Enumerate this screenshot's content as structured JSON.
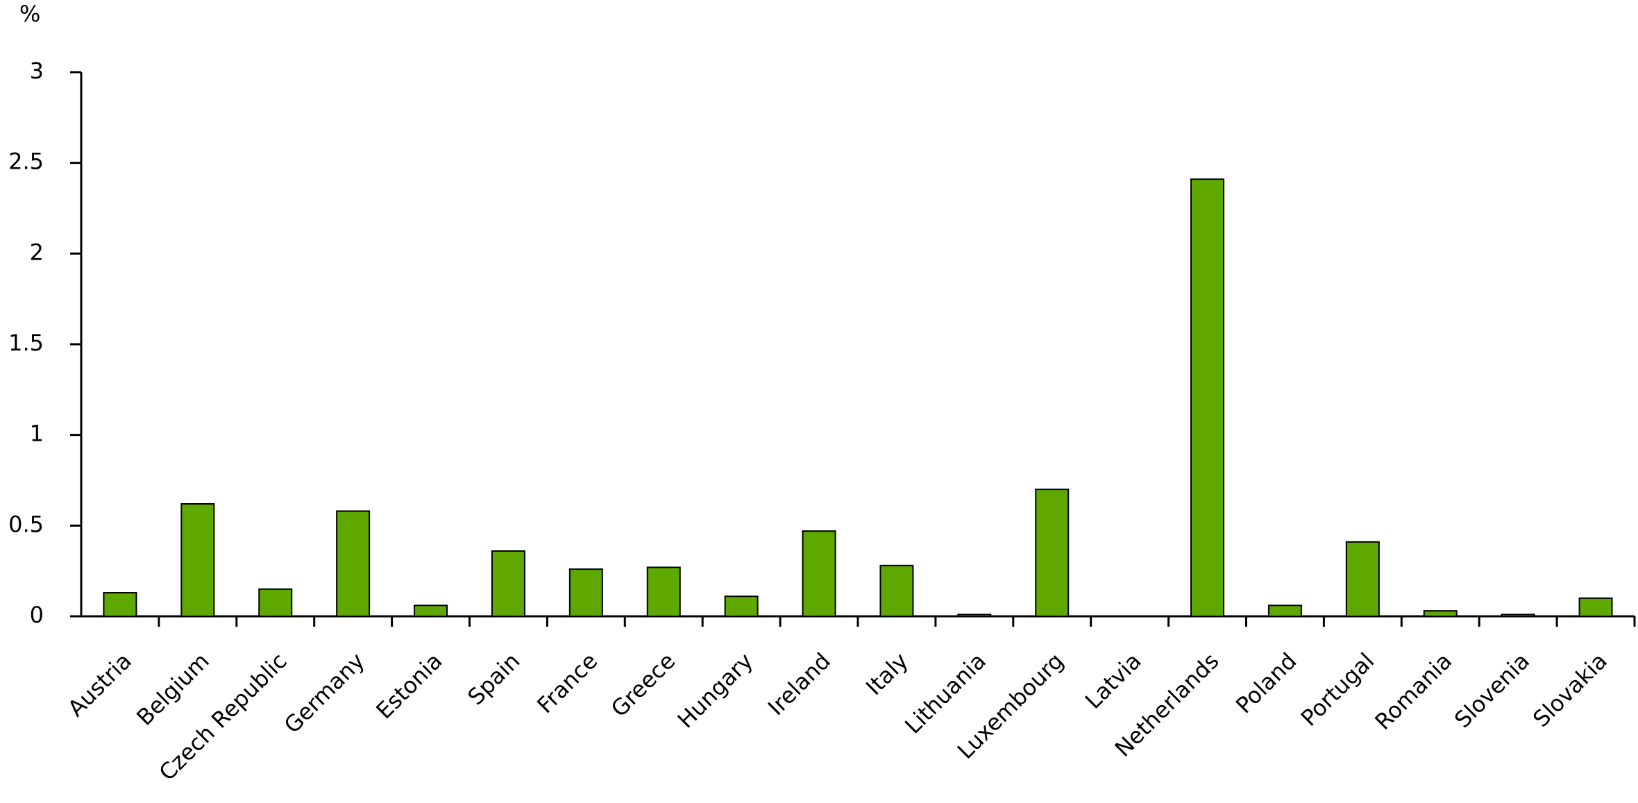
{
  "chart_data": {
    "type": "bar",
    "y_label": "%",
    "categories": [
      "Austria",
      "Belgium",
      "Czech Republic",
      "Germany",
      "Estonia",
      "Spain",
      "France",
      "Greece",
      "Hungary",
      "Ireland",
      "Italy",
      "Lithuania",
      "Luxembourg",
      "Latvia",
      "Netherlands",
      "Poland",
      "Portugal",
      "Romania",
      "Slovenia",
      "Slovakia"
    ],
    "values": [
      0.13,
      0.62,
      0.15,
      0.58,
      0.06,
      0.36,
      0.26,
      0.27,
      0.11,
      0.47,
      0.28,
      0.01,
      0.7,
      0,
      2.41,
      0.06,
      0.41,
      0.03,
      0.01,
      0.1
    ],
    "color": "#5ea800",
    "ylim": [
      0,
      3
    ],
    "yticks": [
      0,
      0.5,
      1,
      1.5,
      2,
      2.5,
      3
    ],
    "grid": false
  }
}
